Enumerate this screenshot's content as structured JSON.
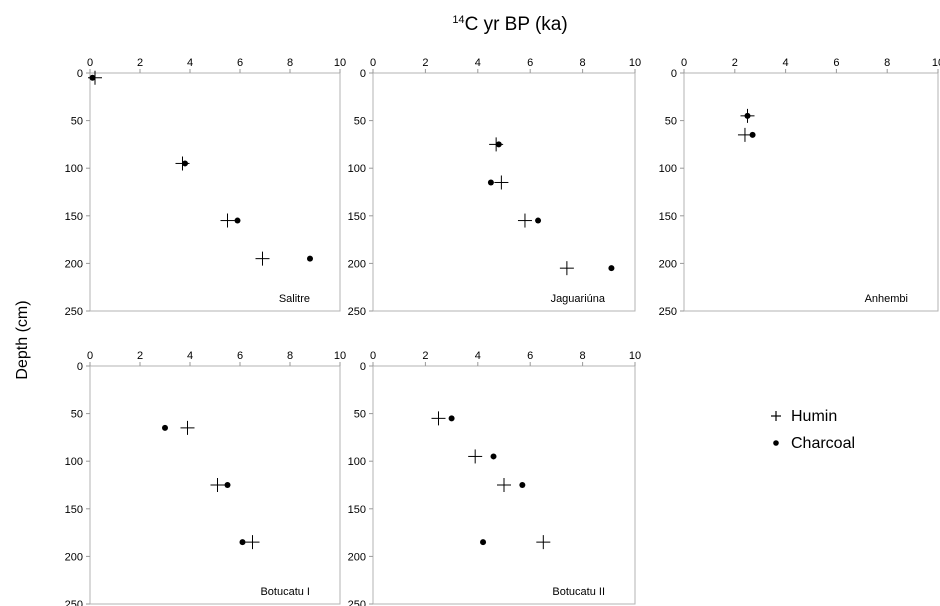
{
  "figure": {
    "title_sup": "14",
    "title_main": "C yr BP (ka)",
    "ylabel": "Depth (cm)"
  },
  "legend": [
    {
      "marker": "plus",
      "label": "Humin"
    },
    {
      "marker": "dot",
      "label": "Charcoal"
    }
  ],
  "chart_data": [
    {
      "type": "scatter",
      "panel": "Salitre",
      "xlim": [
        0,
        10
      ],
      "xticks": [
        0,
        2,
        4,
        6,
        8,
        10
      ],
      "ylim": [
        0,
        250
      ],
      "yticks": [
        0,
        50,
        100,
        150,
        200,
        250
      ],
      "y_inverted": true,
      "series": [
        {
          "name": "Humin",
          "marker": "plus",
          "points": [
            [
              0.2,
              5
            ],
            [
              3.7,
              95
            ],
            [
              5.5,
              155
            ],
            [
              6.9,
              195
            ]
          ]
        },
        {
          "name": "Charcoal",
          "marker": "dot",
          "points": [
            [
              0.1,
              5
            ],
            [
              3.8,
              95
            ],
            [
              5.9,
              155
            ],
            [
              8.8,
              195
            ]
          ]
        }
      ]
    },
    {
      "type": "scatter",
      "panel": "Jaguariúna",
      "xlim": [
        0,
        10
      ],
      "xticks": [
        0,
        2,
        4,
        6,
        8,
        10
      ],
      "ylim": [
        0,
        250
      ],
      "yticks": [
        0,
        50,
        100,
        150,
        200,
        250
      ],
      "y_inverted": true,
      "series": [
        {
          "name": "Humin",
          "marker": "plus",
          "points": [
            [
              4.7,
              75
            ],
            [
              4.9,
              115
            ],
            [
              5.8,
              155
            ],
            [
              7.4,
              205
            ]
          ]
        },
        {
          "name": "Charcoal",
          "marker": "dot",
          "points": [
            [
              4.8,
              75
            ],
            [
              4.5,
              115
            ],
            [
              6.3,
              155
            ],
            [
              9.1,
              205
            ]
          ]
        }
      ]
    },
    {
      "type": "scatter",
      "panel": "Anhembi",
      "xlim": [
        0,
        10
      ],
      "xticks": [
        0,
        2,
        4,
        6,
        8,
        10
      ],
      "ylim": [
        0,
        250
      ],
      "yticks": [
        0,
        50,
        100,
        150,
        200,
        250
      ],
      "y_inverted": true,
      "series": [
        {
          "name": "Humin",
          "marker": "plus",
          "points": [
            [
              2.5,
              45
            ],
            [
              2.4,
              65
            ]
          ]
        },
        {
          "name": "Charcoal",
          "marker": "dot",
          "points": [
            [
              2.5,
              45
            ],
            [
              2.7,
              65
            ]
          ]
        }
      ]
    },
    {
      "type": "scatter",
      "panel": "Botucatu I",
      "xlim": [
        0,
        10
      ],
      "xticks": [
        0,
        2,
        4,
        6,
        8,
        10
      ],
      "ylim": [
        0,
        250
      ],
      "yticks": [
        0,
        50,
        100,
        150,
        200,
        250
      ],
      "y_inverted": true,
      "series": [
        {
          "name": "Humin",
          "marker": "plus",
          "points": [
            [
              3.9,
              65
            ],
            [
              5.1,
              125
            ],
            [
              6.5,
              185
            ]
          ]
        },
        {
          "name": "Charcoal",
          "marker": "dot",
          "points": [
            [
              3.0,
              65
            ],
            [
              5.5,
              125
            ],
            [
              6.1,
              185
            ]
          ]
        }
      ]
    },
    {
      "type": "scatter",
      "panel": "Botucatu II",
      "xlim": [
        0,
        10
      ],
      "xticks": [
        0,
        2,
        4,
        6,
        8,
        10
      ],
      "ylim": [
        0,
        250
      ],
      "yticks": [
        0,
        50,
        100,
        150,
        200,
        250
      ],
      "y_inverted": true,
      "series": [
        {
          "name": "Humin",
          "marker": "plus",
          "points": [
            [
              2.5,
              55
            ],
            [
              3.9,
              95
            ],
            [
              5.0,
              125
            ],
            [
              6.5,
              185
            ]
          ]
        },
        {
          "name": "Charcoal",
          "marker": "dot",
          "points": [
            [
              3.0,
              55
            ],
            [
              4.6,
              95
            ],
            [
              5.7,
              125
            ],
            [
              4.2,
              185
            ]
          ]
        }
      ]
    }
  ]
}
